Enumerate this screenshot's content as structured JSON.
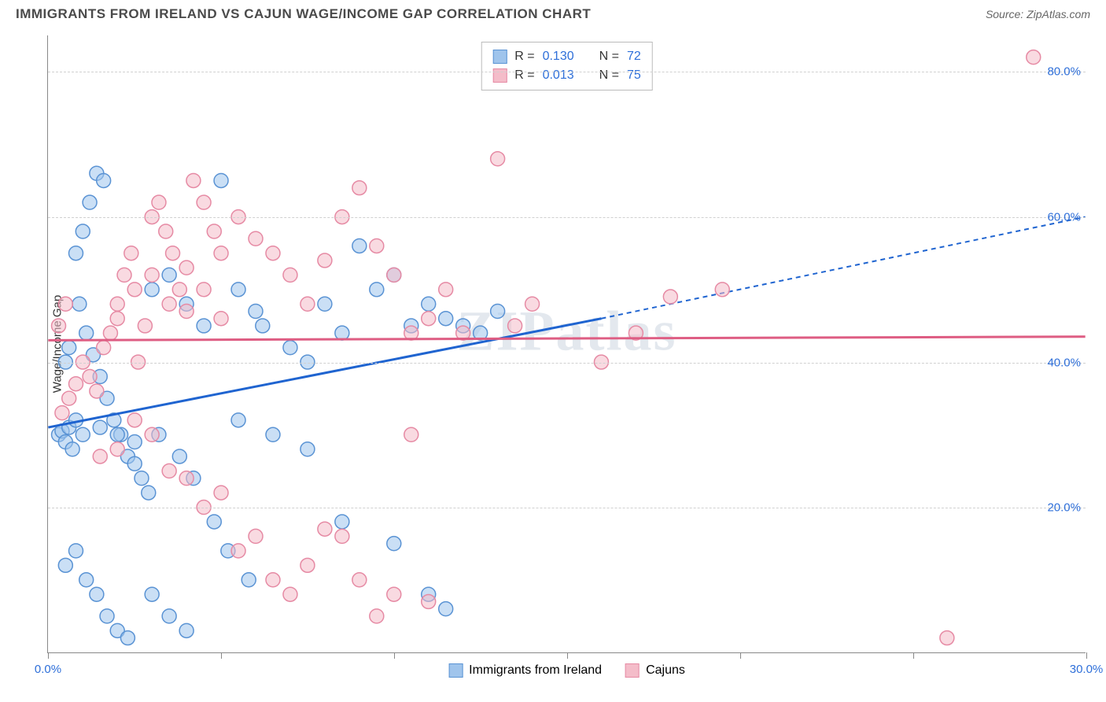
{
  "header": {
    "title": "IMMIGRANTS FROM IRELAND VS CAJUN WAGE/INCOME GAP CORRELATION CHART",
    "source": "Source: ZipAtlas.com"
  },
  "watermark": "ZIPatlas",
  "chart": {
    "type": "scatter",
    "ylabel": "Wage/Income Gap",
    "xlim": [
      0,
      30
    ],
    "ylim": [
      0,
      85
    ],
    "x_ticks": [
      0,
      5,
      10,
      15,
      20,
      25,
      30
    ],
    "x_tick_labels": [
      "0.0%",
      "",
      "",
      "",
      "",
      "",
      "30.0%"
    ],
    "y_ticks": [
      20,
      40,
      60,
      80
    ],
    "y_tick_labels": [
      "20.0%",
      "40.0%",
      "60.0%",
      "80.0%"
    ],
    "grid_color": "#d0d0d0",
    "background_color": "#ffffff",
    "axis_color": "#888888",
    "tick_label_color": "#2e6fd9",
    "marker_radius": 9,
    "marker_opacity": 0.55,
    "series": [
      {
        "name": "Immigrants from Ireland",
        "fill_color": "#9fc4ec",
        "stroke_color": "#5a93d4",
        "line_color": "#1f64d0",
        "r_value": "0.130",
        "n_value": "72",
        "trend": {
          "x1": 0,
          "y1": 31,
          "x2_solid": 16,
          "y2_solid": 46,
          "x2_dash": 30,
          "y2_dash": 60
        },
        "points": [
          [
            0.3,
            30
          ],
          [
            0.4,
            30.5
          ],
          [
            0.5,
            29
          ],
          [
            0.6,
            31
          ],
          [
            0.7,
            28
          ],
          [
            0.8,
            32
          ],
          [
            0.5,
            40
          ],
          [
            0.6,
            42
          ],
          [
            0.8,
            55
          ],
          [
            1.0,
            58
          ],
          [
            1.2,
            62
          ],
          [
            1.4,
            66
          ],
          [
            1.6,
            65
          ],
          [
            0.9,
            48
          ],
          [
            1.1,
            44
          ],
          [
            1.3,
            41
          ],
          [
            1.5,
            38
          ],
          [
            1.7,
            35
          ],
          [
            1.9,
            32
          ],
          [
            2.1,
            30
          ],
          [
            2.3,
            27
          ],
          [
            2.5,
            26
          ],
          [
            2.7,
            24
          ],
          [
            2.9,
            22
          ],
          [
            0.5,
            12
          ],
          [
            0.8,
            14
          ],
          [
            1.1,
            10
          ],
          [
            1.4,
            8
          ],
          [
            1.7,
            5
          ],
          [
            2.0,
            3
          ],
          [
            2.3,
            2
          ],
          [
            1.0,
            30
          ],
          [
            1.5,
            31
          ],
          [
            2.0,
            30
          ],
          [
            2.5,
            29
          ],
          [
            3.0,
            50
          ],
          [
            3.5,
            52
          ],
          [
            4.0,
            48
          ],
          [
            4.5,
            45
          ],
          [
            5.0,
            65
          ],
          [
            5.5,
            50
          ],
          [
            6.0,
            47
          ],
          [
            3.2,
            30
          ],
          [
            3.8,
            27
          ],
          [
            4.2,
            24
          ],
          [
            4.8,
            18
          ],
          [
            5.2,
            14
          ],
          [
            5.8,
            10
          ],
          [
            6.2,
            45
          ],
          [
            7.0,
            42
          ],
          [
            7.5,
            40
          ],
          [
            8.0,
            48
          ],
          [
            8.5,
            44
          ],
          [
            9.0,
            56
          ],
          [
            9.5,
            50
          ],
          [
            10.0,
            52
          ],
          [
            10.5,
            45
          ],
          [
            11.0,
            48
          ],
          [
            11.5,
            46
          ],
          [
            12.0,
            45
          ],
          [
            12.5,
            44
          ],
          [
            13.0,
            47
          ],
          [
            3.0,
            8
          ],
          [
            3.5,
            5
          ],
          [
            4.0,
            3
          ],
          [
            5.5,
            32
          ],
          [
            6.5,
            30
          ],
          [
            7.5,
            28
          ],
          [
            8.5,
            18
          ],
          [
            10.0,
            15
          ],
          [
            11.0,
            8
          ],
          [
            11.5,
            6
          ]
        ]
      },
      {
        "name": "Cajuns",
        "fill_color": "#f4bcc9",
        "stroke_color": "#e68aa4",
        "line_color": "#de5d83",
        "r_value": "0.013",
        "n_value": "75",
        "trend": {
          "x1": 0,
          "y1": 43,
          "x2_solid": 30,
          "y2_solid": 43.5,
          "x2_dash": 30,
          "y2_dash": 43.5
        },
        "points": [
          [
            0.4,
            33
          ],
          [
            0.6,
            35
          ],
          [
            0.8,
            37
          ],
          [
            1.0,
            40
          ],
          [
            1.2,
            38
          ],
          [
            1.4,
            36
          ],
          [
            1.6,
            42
          ],
          [
            1.8,
            44
          ],
          [
            2.0,
            48
          ],
          [
            2.2,
            52
          ],
          [
            2.4,
            55
          ],
          [
            2.6,
            40
          ],
          [
            2.8,
            45
          ],
          [
            3.0,
            60
          ],
          [
            3.2,
            62
          ],
          [
            3.4,
            58
          ],
          [
            3.6,
            55
          ],
          [
            3.8,
            50
          ],
          [
            4.0,
            47
          ],
          [
            4.2,
            65
          ],
          [
            4.5,
            62
          ],
          [
            4.8,
            58
          ],
          [
            5.0,
            55
          ],
          [
            5.5,
            60
          ],
          [
            6.0,
            57
          ],
          [
            6.5,
            55
          ],
          [
            7.0,
            52
          ],
          [
            7.5,
            48
          ],
          [
            8.0,
            54
          ],
          [
            8.5,
            60
          ],
          [
            9.0,
            64
          ],
          [
            9.5,
            56
          ],
          [
            10.0,
            52
          ],
          [
            10.5,
            44
          ],
          [
            11.0,
            46
          ],
          [
            11.5,
            50
          ],
          [
            12.0,
            44
          ],
          [
            13.0,
            68
          ],
          [
            13.5,
            45
          ],
          [
            14.0,
            48
          ],
          [
            16.0,
            40
          ],
          [
            17.0,
            44
          ],
          [
            18.0,
            49
          ],
          [
            19.5,
            50
          ],
          [
            1.5,
            27
          ],
          [
            2.0,
            28
          ],
          [
            2.5,
            32
          ],
          [
            3.0,
            30
          ],
          [
            3.5,
            25
          ],
          [
            4.0,
            24
          ],
          [
            4.5,
            20
          ],
          [
            5.0,
            22
          ],
          [
            5.5,
            14
          ],
          [
            6.0,
            16
          ],
          [
            6.5,
            10
          ],
          [
            7.0,
            8
          ],
          [
            7.5,
            12
          ],
          [
            8.0,
            17
          ],
          [
            8.5,
            16
          ],
          [
            9.0,
            10
          ],
          [
            9.5,
            5
          ],
          [
            10.0,
            8
          ],
          [
            10.5,
            30
          ],
          [
            11.0,
            7
          ],
          [
            2.0,
            46
          ],
          [
            2.5,
            50
          ],
          [
            3.0,
            52
          ],
          [
            3.5,
            48
          ],
          [
            4.0,
            53
          ],
          [
            4.5,
            50
          ],
          [
            5.0,
            46
          ],
          [
            28.5,
            82
          ],
          [
            26.0,
            2
          ],
          [
            0.3,
            45
          ],
          [
            0.5,
            48
          ]
        ]
      }
    ]
  },
  "stats_legend": {
    "r_label": "R =",
    "n_label": "N ="
  },
  "bottom_legend": {
    "items": [
      "Immigrants from Ireland",
      "Cajuns"
    ]
  }
}
